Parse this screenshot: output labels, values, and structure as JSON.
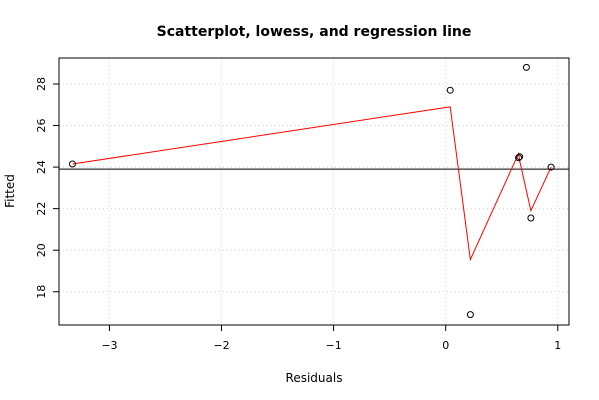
{
  "chart_data": {
    "type": "scatter",
    "title": "Scatterplot, lowess, and regression line",
    "xlabel": "Residuals",
    "ylabel": "Fitted",
    "xlim": [
      -3.45,
      1.1
    ],
    "ylim": [
      16.4,
      29.25
    ],
    "x_ticks": [
      -3,
      -2,
      -1,
      0,
      1
    ],
    "y_ticks": [
      18,
      20,
      22,
      24,
      26,
      28
    ],
    "grid": true,
    "points": [
      {
        "x": -3.33,
        "y": 24.15
      },
      {
        "x": 0.04,
        "y": 27.7
      },
      {
        "x": 0.22,
        "y": 16.9
      },
      {
        "x": 0.65,
        "y": 24.45
      },
      {
        "x": 0.66,
        "y": 24.5
      },
      {
        "x": 0.72,
        "y": 28.8
      },
      {
        "x": 0.76,
        "y": 21.55
      },
      {
        "x": 0.94,
        "y": 24.0
      }
    ],
    "lowess": [
      {
        "x": -3.33,
        "y": 24.15
      },
      {
        "x": 0.04,
        "y": 26.9
      },
      {
        "x": 0.22,
        "y": 19.55
      },
      {
        "x": 0.65,
        "y": 24.65
      },
      {
        "x": 0.66,
        "y": 24.3
      },
      {
        "x": 0.76,
        "y": 21.9
      },
      {
        "x": 0.94,
        "y": 24.0
      }
    ],
    "regression_line": {
      "intercept": 23.9,
      "slope": 0.0
    },
    "colors": {
      "points": "#000000",
      "lowess": "#ff0000",
      "regression": "#000000",
      "grid": "#d3d3d3"
    }
  }
}
